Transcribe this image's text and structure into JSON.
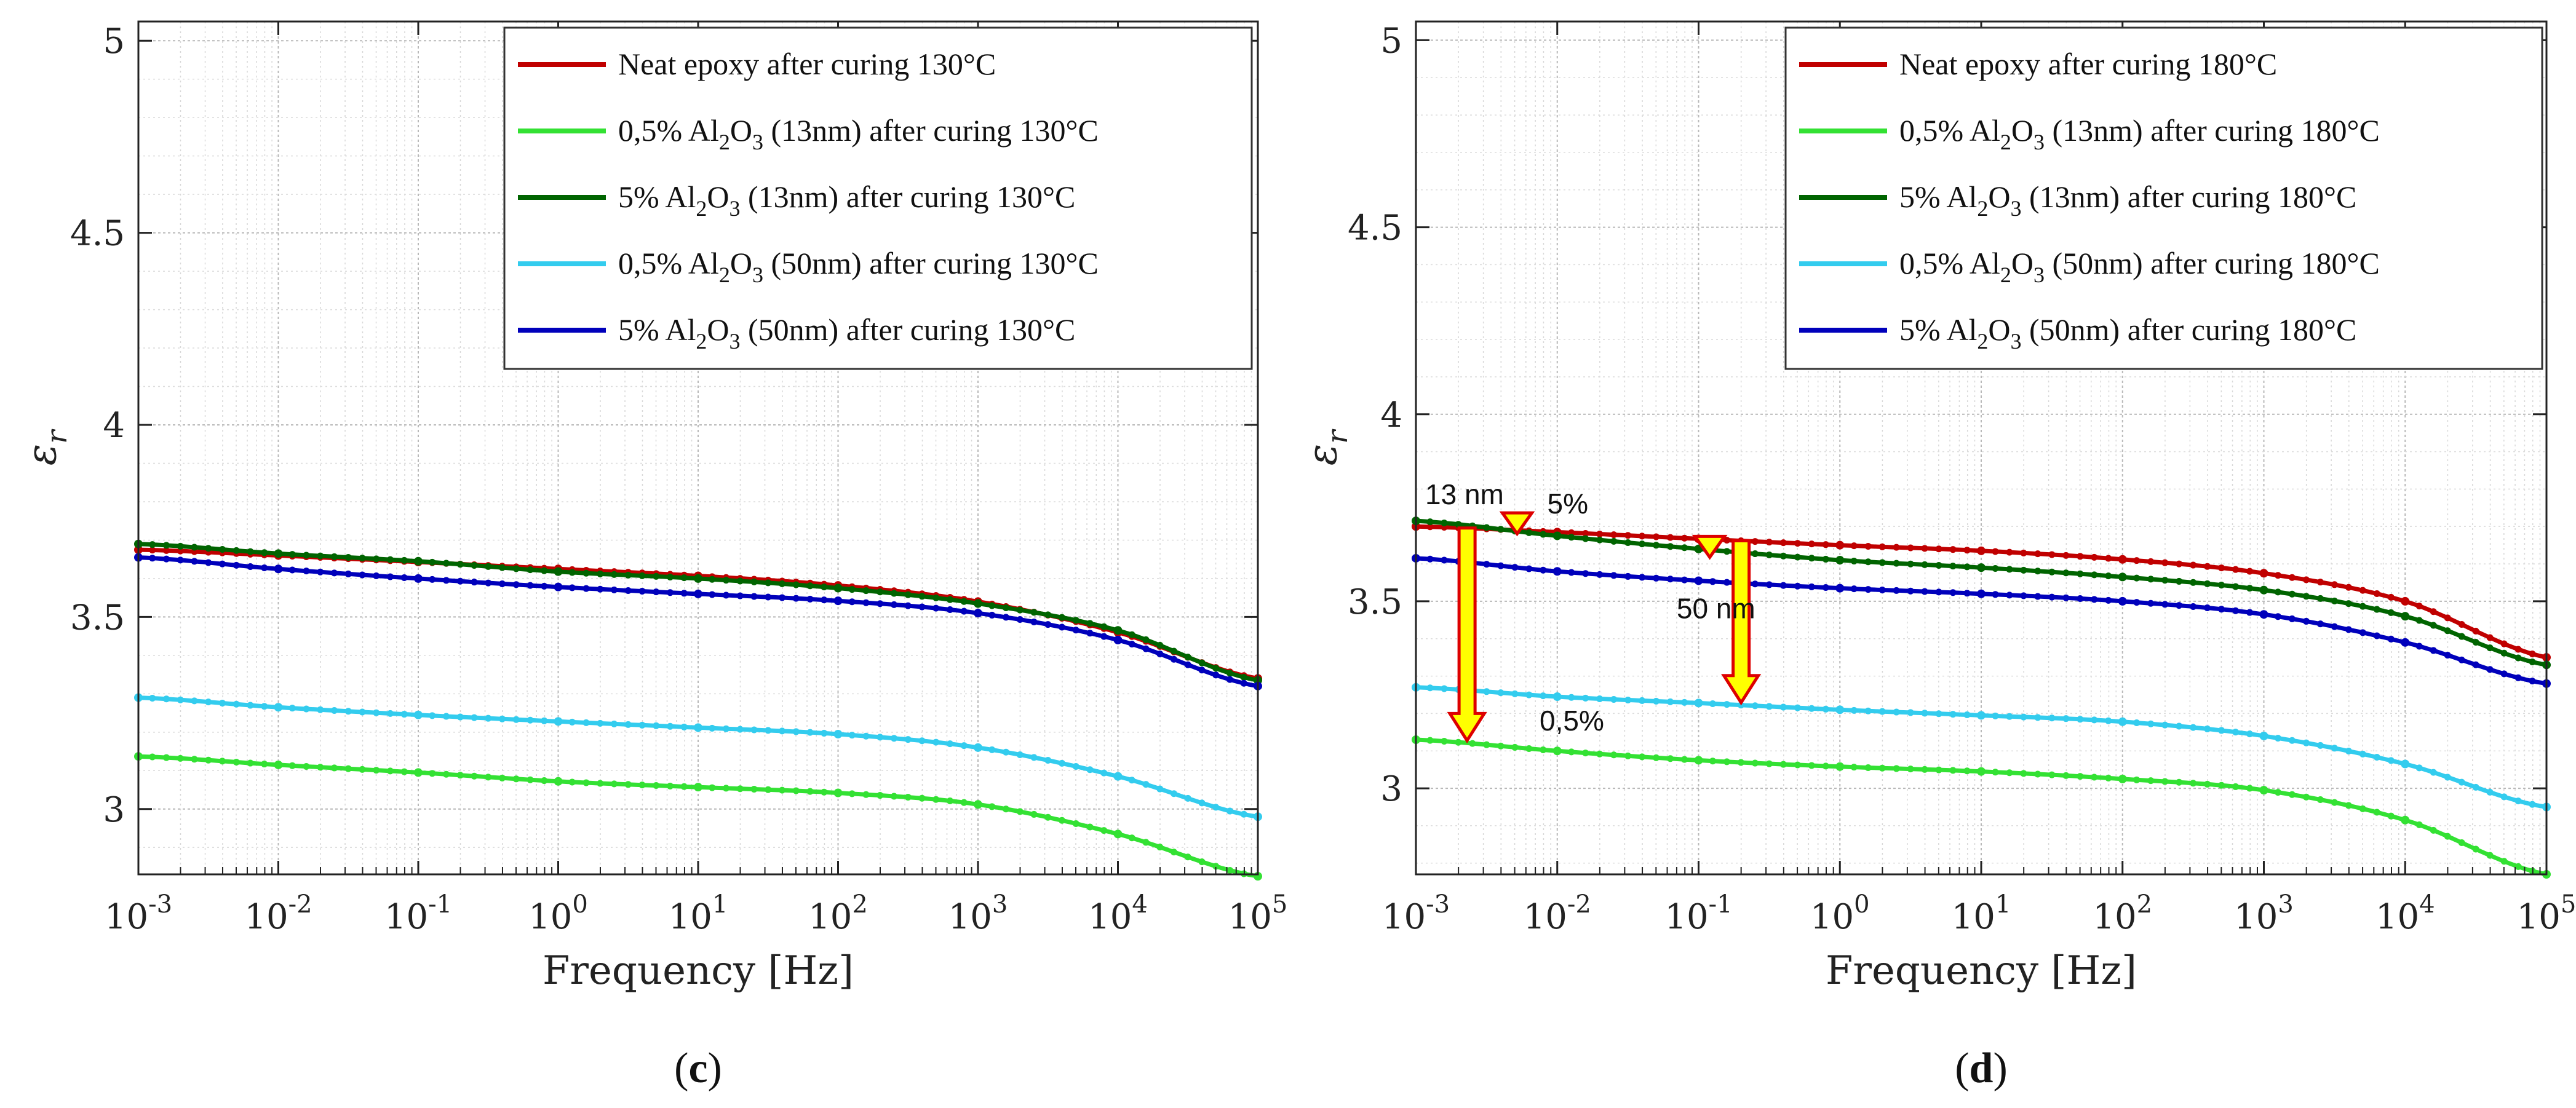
{
  "chart_data": [
    {
      "type": "line",
      "panel_label": "(c)",
      "xlabel": "Frequency [Hz]",
      "ylabel": "εr",
      "xscale": "log",
      "xlim": [
        0.001,
        100000
      ],
      "ylim": [
        2.83,
        5.05
      ],
      "x_ticks": [
        {
          "base": "10",
          "exp": "-3"
        },
        {
          "base": "10",
          "exp": "-2"
        },
        {
          "base": "10",
          "exp": "-1"
        },
        {
          "base": "10",
          "exp": "0"
        },
        {
          "base": "10",
          "exp": "1"
        },
        {
          "base": "10",
          "exp": "2"
        },
        {
          "base": "10",
          "exp": "3"
        },
        {
          "base": "10",
          "exp": "4"
        },
        {
          "base": "10",
          "exp": "5"
        }
      ],
      "y_ticks": [
        "3",
        "3.5",
        "4",
        "4.5",
        "5"
      ],
      "grid": true,
      "legend_position": "top-right",
      "x": [
        0.001,
        0.01,
        0.1,
        1,
        10,
        100,
        1000,
        10000,
        100000
      ],
      "series": [
        {
          "legend": [
            "Neat epoxy after curing 130°C"
          ],
          "color": "#c00000",
          "values": [
            3.675,
            3.66,
            3.643,
            3.625,
            3.607,
            3.582,
            3.54,
            3.46,
            3.34
          ]
        },
        {
          "legend": [
            "0,5% Al",
            "2",
            "O",
            "3",
            " (13nm) after curing 130°C"
          ],
          "color": "#33e133",
          "values": [
            3.137,
            3.115,
            3.095,
            3.072,
            3.057,
            3.042,
            3.012,
            2.935,
            2.825
          ]
        },
        {
          "legend": [
            "5% Al",
            "2",
            "O",
            "3",
            " (13nm) after curing 130°C"
          ],
          "color": "#006400",
          "values": [
            3.69,
            3.665,
            3.645,
            3.618,
            3.6,
            3.575,
            3.535,
            3.465,
            3.335
          ]
        },
        {
          "legend": [
            "0,5% Al",
            "2",
            "O",
            "3",
            " (50nm) after curing 130°C"
          ],
          "color": "#33ccee",
          "values": [
            3.29,
            3.265,
            3.245,
            3.228,
            3.212,
            3.195,
            3.16,
            3.085,
            2.98
          ]
        },
        {
          "legend": [
            "5% Al",
            "2",
            "O",
            "3",
            " (50nm) after curing 130°C"
          ],
          "color": "#0000bb",
          "values": [
            3.655,
            3.625,
            3.6,
            3.578,
            3.56,
            3.542,
            3.51,
            3.44,
            3.32
          ]
        }
      ]
    },
    {
      "type": "line",
      "panel_label": "(d)",
      "xlabel": "Frequency [Hz]",
      "ylabel": "εr",
      "xscale": "log",
      "xlim": [
        0.001,
        100000
      ],
      "ylim": [
        2.77,
        5.05
      ],
      "x_ticks": [
        {
          "base": "10",
          "exp": "-3"
        },
        {
          "base": "10",
          "exp": "-2"
        },
        {
          "base": "10",
          "exp": "-1"
        },
        {
          "base": "10",
          "exp": "0"
        },
        {
          "base": "10",
          "exp": "1"
        },
        {
          "base": "10",
          "exp": "2"
        },
        {
          "base": "10",
          "exp": "3"
        },
        {
          "base": "10",
          "exp": "4"
        },
        {
          "base": "10",
          "exp": "5"
        }
      ],
      "y_ticks": [
        "3",
        "3.5",
        "4",
        "4.5",
        "5"
      ],
      "grid": true,
      "legend_position": "top-right",
      "x": [
        0.001,
        0.01,
        0.1,
        1,
        10,
        100,
        1000,
        10000,
        100000
      ],
      "series": [
        {
          "legend": [
            "Neat epoxy after curing 180°C"
          ],
          "color": "#c00000",
          "values": [
            3.7,
            3.685,
            3.667,
            3.65,
            3.635,
            3.612,
            3.575,
            3.5,
            3.35
          ]
        },
        {
          "legend": [
            "0,5% Al",
            "2",
            "O",
            "3",
            " (13nm) after curing 180°C"
          ],
          "color": "#33e133",
          "values": [
            3.13,
            3.1,
            3.075,
            3.058,
            3.045,
            3.025,
            2.995,
            2.915,
            2.77
          ]
        },
        {
          "legend": [
            "5% Al",
            "2",
            "O",
            "3",
            " (13nm) after curing 180°C"
          ],
          "color": "#006400",
          "values": [
            3.715,
            3.675,
            3.64,
            3.61,
            3.59,
            3.565,
            3.53,
            3.46,
            3.33
          ]
        },
        {
          "legend": [
            "0,5% Al",
            "2",
            "O",
            "3",
            " (50nm) after curing 180°C"
          ],
          "color": "#33ccee",
          "values": [
            3.27,
            3.245,
            3.228,
            3.21,
            3.195,
            3.178,
            3.14,
            3.065,
            2.95
          ]
        },
        {
          "legend": [
            "5% Al",
            "2",
            "O",
            "3",
            " (50nm) after curing 180°C"
          ],
          "color": "#0000bb",
          "values": [
            3.615,
            3.58,
            3.555,
            3.535,
            3.52,
            3.5,
            3.465,
            3.39,
            3.28
          ]
        }
      ],
      "annotations": [
        "13 nm",
        "5%",
        "50 nm",
        "0,5%"
      ]
    }
  ]
}
